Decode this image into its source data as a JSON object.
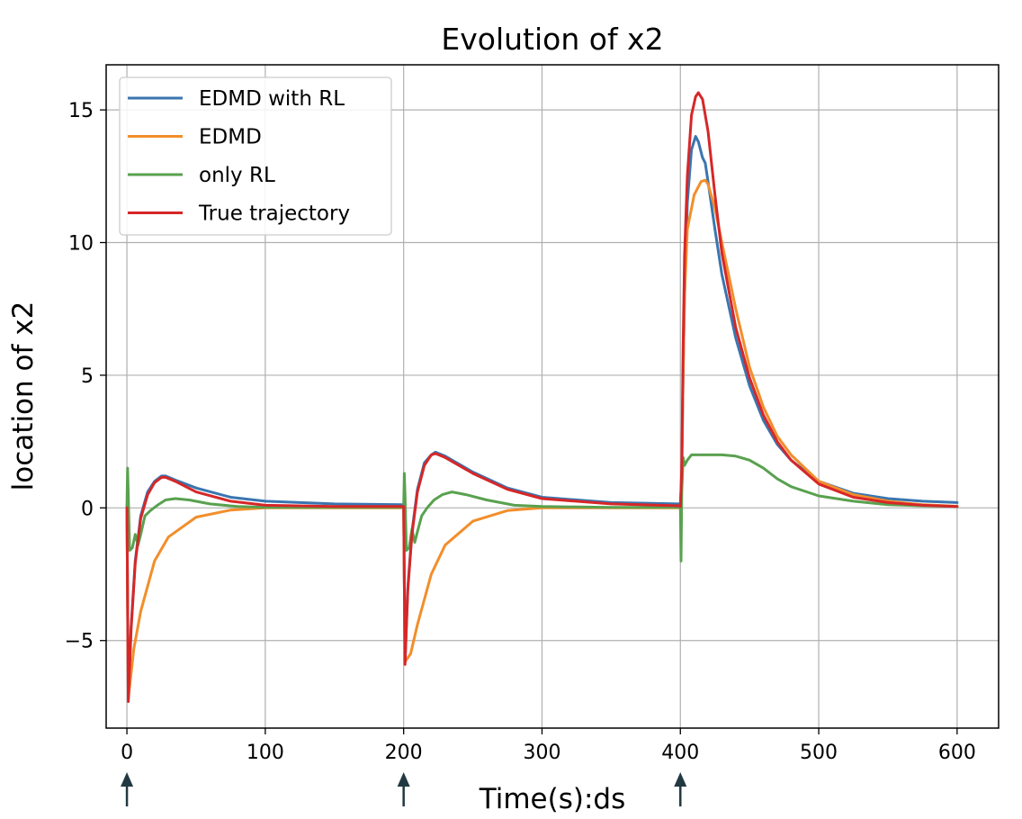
{
  "chart_data": {
    "type": "line",
    "title": "Evolution of x2",
    "xlabel": "Time(s):ds",
    "ylabel": "location of x2",
    "xlim": [
      -15,
      630
    ],
    "ylim": [
      -8.3,
      16.7
    ],
    "xticks": [
      0,
      100,
      200,
      300,
      400,
      500,
      600
    ],
    "xtick_labels": [
      "0",
      "100",
      "200",
      "300",
      "400",
      "500",
      "600"
    ],
    "yticks": [
      -5,
      0,
      5,
      10,
      15
    ],
    "ytick_labels": [
      "−5",
      "0",
      "5",
      "10",
      "15"
    ],
    "grid": true,
    "legend_position": "top-left",
    "event_markers": [
      0,
      200,
      400
    ],
    "colors": {
      "edmd_rl": "#3a75b0",
      "edmd": "#f28e2b",
      "only_rl": "#59a14f",
      "true": "#d62728",
      "marker": "#233942"
    },
    "series": [
      {
        "name": "EDMD with RL",
        "color_key": "edmd_rl",
        "x": [
          0,
          1,
          3,
          6,
          10,
          15,
          20,
          25,
          28,
          35,
          50,
          75,
          100,
          150,
          199,
          200,
          201,
          203,
          206,
          210,
          215,
          220,
          223,
          230,
          250,
          275,
          300,
          350,
          399,
          400,
          401,
          402,
          403,
          405,
          408,
          411,
          413,
          416,
          418,
          420,
          425,
          430,
          440,
          450,
          460,
          470,
          480,
          500,
          525,
          550,
          575,
          600
        ],
        "y": [
          0.1,
          -7.2,
          -4.5,
          -2.0,
          -0.3,
          0.6,
          1.0,
          1.2,
          1.2,
          1.05,
          0.75,
          0.4,
          0.25,
          0.15,
          0.12,
          0.1,
          -5.8,
          -3.0,
          -0.9,
          0.7,
          1.7,
          2.0,
          2.1,
          1.95,
          1.35,
          0.75,
          0.4,
          0.2,
          0.15,
          0.1,
          1.2,
          5.0,
          8.0,
          11.5,
          13.5,
          14.0,
          13.8,
          13.2,
          13.0,
          12.3,
          10.5,
          8.8,
          6.4,
          4.6,
          3.3,
          2.4,
          1.8,
          1.0,
          0.55,
          0.35,
          0.25,
          0.2
        ]
      },
      {
        "name": "EDMD",
        "color_key": "edmd",
        "x": [
          0,
          1,
          5,
          10,
          20,
          30,
          50,
          75,
          100,
          150,
          199,
          200,
          201,
          205,
          210,
          220,
          230,
          250,
          275,
          300,
          350,
          399,
          400,
          401,
          402,
          403,
          405,
          410,
          415,
          418,
          420,
          425,
          430,
          440,
          450,
          460,
          470,
          480,
          500,
          525,
          550,
          575,
          600
        ],
        "y": [
          0.0,
          -7.2,
          -5.3,
          -3.9,
          -2.0,
          -1.1,
          -0.35,
          -0.08,
          0.0,
          0.0,
          0.0,
          0.0,
          -5.8,
          -5.5,
          -4.4,
          -2.5,
          -1.4,
          -0.5,
          -0.1,
          0.0,
          0.0,
          0.0,
          0.0,
          1.2,
          5.0,
          8.0,
          10.5,
          11.8,
          12.3,
          12.35,
          12.2,
          11.3,
          10.0,
          7.5,
          5.3,
          3.8,
          2.7,
          2.0,
          1.0,
          0.5,
          0.25,
          0.12,
          0.06
        ]
      },
      {
        "name": "only RL",
        "color_key": "only_rl",
        "x": [
          0,
          0.5,
          1,
          2,
          4,
          6,
          8,
          10,
          13,
          17,
          22,
          28,
          35,
          45,
          60,
          80,
          100,
          150,
          199,
          200,
          200.5,
          201,
          202,
          204,
          206,
          208,
          210,
          213,
          217,
          222,
          228,
          235,
          245,
          260,
          280,
          300,
          350,
          399,
          400,
          400.5,
          401,
          402,
          403,
          405,
          408,
          410,
          420,
          430,
          440,
          450,
          460,
          470,
          480,
          500,
          525,
          550,
          575,
          600
        ],
        "y": [
          0.1,
          1.5,
          0.5,
          -1.6,
          -1.5,
          -1.0,
          -1.4,
          -1.0,
          -0.3,
          -0.1,
          0.1,
          0.3,
          0.35,
          0.3,
          0.15,
          0.05,
          0.02,
          0.02,
          0.02,
          0.02,
          1.3,
          0.5,
          -1.6,
          -1.5,
          -0.8,
          -1.3,
          -0.9,
          -0.3,
          0.0,
          0.3,
          0.5,
          0.6,
          0.5,
          0.3,
          0.1,
          0.05,
          0.02,
          0.02,
          0.02,
          -2.0,
          0.6,
          1.9,
          1.6,
          1.8,
          2.0,
          2.0,
          2.0,
          2.0,
          1.95,
          1.8,
          1.5,
          1.1,
          0.8,
          0.45,
          0.25,
          0.12,
          0.08,
          0.05
        ]
      },
      {
        "name": "True trajectory",
        "color_key": "true",
        "x": [
          0,
          1,
          3,
          6,
          10,
          15,
          20,
          25,
          28,
          35,
          50,
          75,
          100,
          150,
          199,
          200,
          201,
          203,
          206,
          210,
          215,
          220,
          223,
          230,
          250,
          275,
          300,
          350,
          399,
          400,
          401,
          402,
          403,
          405,
          408,
          411,
          413,
          416,
          420,
          425,
          430,
          440,
          450,
          460,
          470,
          480,
          500,
          525,
          550,
          575,
          600
        ],
        "y": [
          0.0,
          -7.3,
          -4.6,
          -2.1,
          -0.4,
          0.5,
          0.95,
          1.15,
          1.15,
          1.0,
          0.6,
          0.25,
          0.1,
          0.05,
          0.05,
          0.05,
          -5.9,
          -3.1,
          -1.0,
          0.6,
          1.6,
          2.0,
          2.05,
          1.9,
          1.3,
          0.7,
          0.35,
          0.15,
          0.08,
          0.05,
          1.5,
          6.0,
          9.5,
          12.5,
          14.8,
          15.5,
          15.65,
          15.4,
          14.2,
          11.8,
          9.6,
          6.8,
          4.9,
          3.5,
          2.5,
          1.8,
          0.9,
          0.4,
          0.2,
          0.1,
          0.05
        ]
      }
    ]
  }
}
